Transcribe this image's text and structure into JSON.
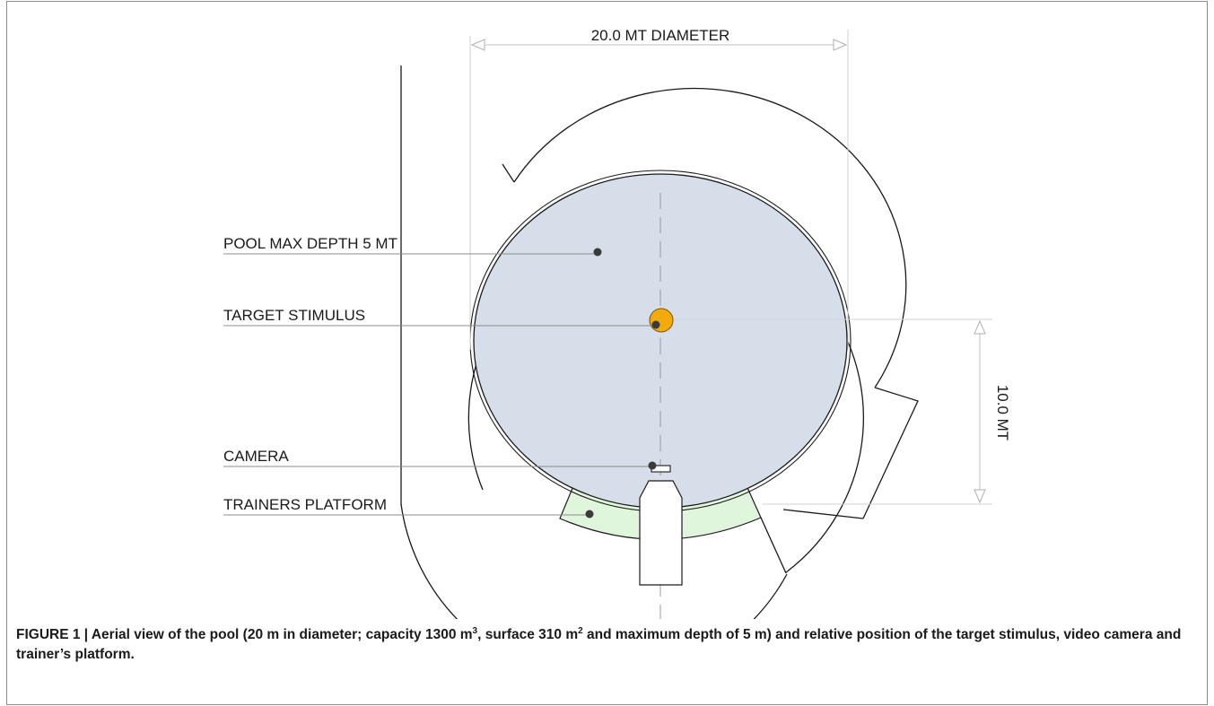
{
  "labels": {
    "diameter": "20.0 MT DIAMETER",
    "depth": "POOL MAX DEPTH 5 MT",
    "target": "TARGET STIMULUS",
    "camera": "CAMERA",
    "platform": "TRAINERS PLATFORM",
    "distance": "10.0 MT"
  },
  "caption": {
    "prefix": "FIGURE 1 | Aerial view of the pool (20 m in diameter; capacity 1300 m",
    "sup1": "3",
    "mid": ", surface 310 m",
    "sup2": "2",
    "suffix": " and maximum depth of 5 m) and relative position of the target stimulus, video camera and trainer’s platform."
  },
  "colors": {
    "pool_water": "#d6dee9",
    "target": "#f2ab0b",
    "platform": "#dff5dc",
    "line": "#1a1a1a",
    "dimension": "#c8c8c8"
  }
}
